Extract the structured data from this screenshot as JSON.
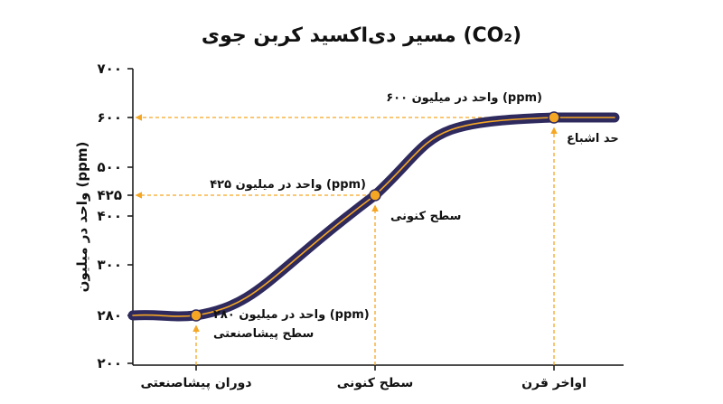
{
  "chart_data": {
    "type": "line",
    "title": "مسیر دی‌اکسید کربن جوی (CO₂)",
    "ylabel": "واحد در میلیون (ppm)",
    "xlabel": "",
    "ylim": [
      200,
      700
    ],
    "yticks": [
      {
        "value": 200,
        "label": "۲۰۰"
      },
      {
        "value": 280,
        "label": "۲۸۰"
      },
      {
        "value": 300,
        "label": "۳۰۰"
      },
      {
        "value": 400,
        "label": "۴۰۰"
      },
      {
        "value": 425,
        "label": "۴۲۵"
      },
      {
        "value": 500,
        "label": "۵۰۰"
      },
      {
        "value": 600,
        "label": "۶۰۰"
      },
      {
        "value": 700,
        "label": "۷۰۰"
      }
    ],
    "categories": [
      "دوران پیشاصنعتی",
      "سطح کنونی",
      "اواخر قرن"
    ],
    "x": [
      0,
      1,
      2
    ],
    "values": [
      280,
      425,
      600
    ],
    "grid": false,
    "legend": "none",
    "annotations": [
      {
        "value": 280,
        "line1": "۲۸۰ واحد در میلیون (ppm)",
        "line2": "سطح پیشاصنعتی"
      },
      {
        "value": 425,
        "line1": "۴۲۵ واحد در میلیون (ppm)",
        "line2": "سطح کنونی"
      },
      {
        "value": 600,
        "line1": "۶۰۰ واحد در میلیون (ppm)",
        "line2": "حد اشباع"
      }
    ],
    "colors": {
      "line": "#2e2a5e",
      "accent": "#f5a623",
      "axis": "#111111"
    }
  }
}
